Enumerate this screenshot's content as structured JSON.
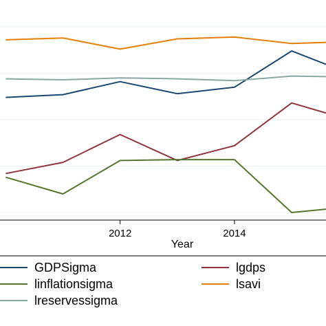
{
  "chart_data": {
    "type": "line",
    "xlabel": "Year",
    "ylabel": "",
    "x": [
      2010,
      2011,
      2012,
      2013,
      2014,
      2015,
      2016
    ],
    "xlim": [
      2009.9,
      2015.6
    ],
    "ylim": [
      0,
      100
    ],
    "xticks": [
      "2012",
      "2014"
    ],
    "grid": true,
    "legend_position": "bottom",
    "series": [
      {
        "name": "GDPSigma",
        "color": "#1a476f",
        "values": [
          62,
          63.5,
          70.5,
          64,
          67.5,
          87,
          75
        ]
      },
      {
        "name": "lgdps",
        "color": "#90353b",
        "values": [
          21,
          27,
          42,
          28,
          36,
          59,
          50
        ]
      },
      {
        "name": "linflationsigma",
        "color": "#55752f",
        "values": [
          19,
          10,
          28,
          28.5,
          28.5,
          0,
          3
        ]
      },
      {
        "name": "lsavi",
        "color": "#e37e00",
        "values": [
          93,
          94,
          88,
          93.5,
          94.5,
          91,
          92
        ]
      },
      {
        "name": "lreservessigma",
        "color": "#8ba7a2",
        "values": [
          72,
          71.5,
          72.5,
          72,
          71,
          73.5,
          73
        ]
      }
    ]
  }
}
